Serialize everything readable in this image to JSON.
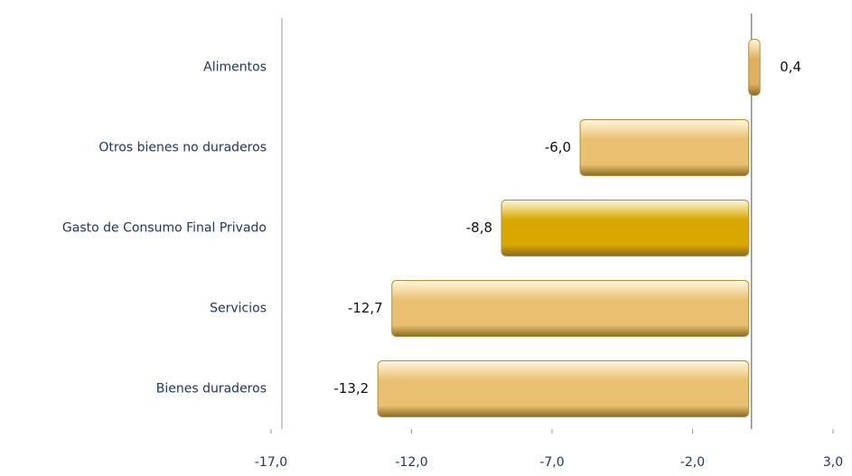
{
  "chart_data": {
    "type": "hbar",
    "categories": [
      "Alimentos",
      "Otros bienes no duraderos",
      "Gasto de Consumo Final Privado",
      "Servicios",
      "Bienes duraderos"
    ],
    "values": [
      0.4,
      -6.0,
      -8.8,
      -12.7,
      -13.2
    ],
    "value_labels": [
      "0,4",
      "-6,0",
      "-8,8",
      "-12,7",
      "-13,2"
    ],
    "colors": [
      "#e0b060",
      "#e8c070",
      "#d9a800",
      "#e8c070",
      "#e8c070"
    ],
    "xlim": [
      -17,
      3
    ],
    "xticks": [
      {
        "value": -17,
        "label": "-17,0"
      },
      {
        "value": -12,
        "label": "-12,0"
      },
      {
        "value": -7,
        "label": "-7,0"
      },
      {
        "value": -2,
        "label": "-2,0"
      },
      {
        "value": 3,
        "label": "3,0"
      }
    ]
  }
}
